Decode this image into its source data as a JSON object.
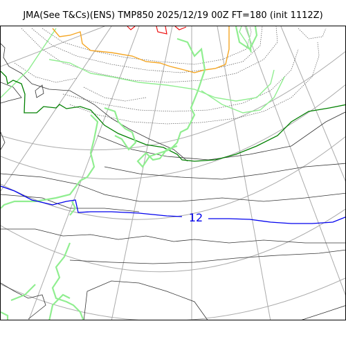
{
  "header": {
    "title": "JMA(See T&Cs)(ENS) TMP850 2025/12/19 00Z FT=180 (init 1112Z)"
  },
  "map": {
    "contour_labels": [
      "12"
    ],
    "colors": {
      "graticule": "#aaaaaa",
      "coastline": "#333333",
      "isotherm_dotted": "#555555",
      "isotherm_light_green": "#90ee90",
      "isotherm_orange": "#f5a623",
      "isotherm_dark_green": "#008000",
      "isotherm_red": "#ee1111",
      "isotherm_blue": "#0000ee"
    }
  }
}
